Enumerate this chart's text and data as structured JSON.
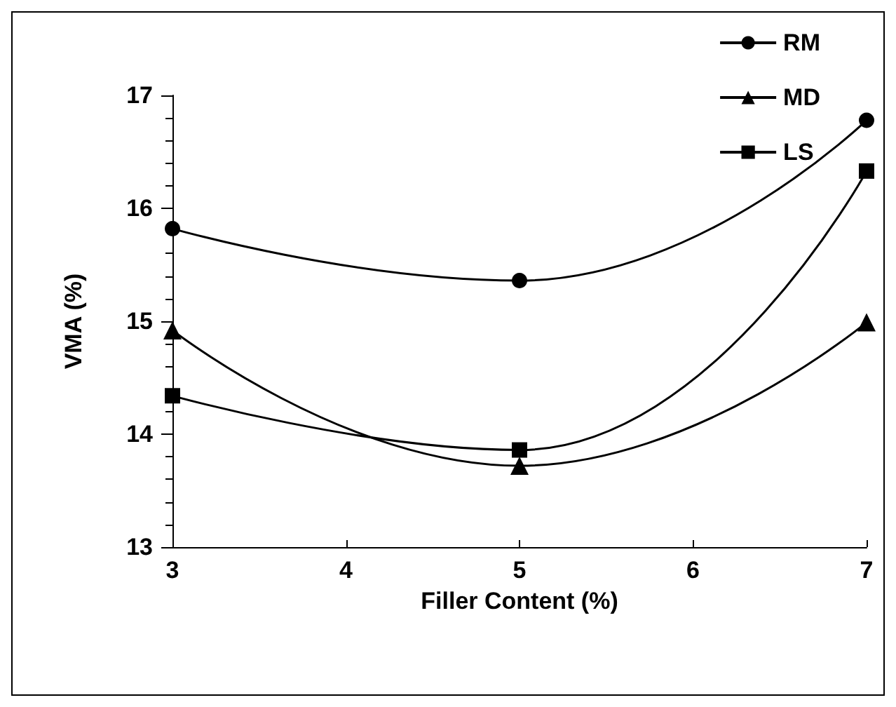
{
  "chart_data": {
    "type": "line",
    "xlabel": "Filler Content (%)",
    "ylabel": "VMA (%)",
    "x": [
      3,
      5,
      7
    ],
    "series": [
      {
        "name": "RM",
        "color": "#000000",
        "marker": "circle",
        "values": [
          15.82,
          15.36,
          16.78
        ]
      },
      {
        "name": "MD",
        "color": "#000000",
        "marker": "triangle",
        "values": [
          14.92,
          13.72,
          14.99
        ]
      },
      {
        "name": "LS",
        "color": "#000000",
        "marker": "square",
        "values": [
          14.34,
          13.86,
          16.33
        ]
      }
    ],
    "xlim": [
      3,
      7
    ],
    "xticks": [
      3,
      4,
      5,
      6,
      7
    ],
    "ylim": [
      13,
      17
    ],
    "yticks": [
      13,
      14,
      15,
      16,
      17
    ],
    "grid": false,
    "legend": "top right",
    "line_style": "solid"
  }
}
